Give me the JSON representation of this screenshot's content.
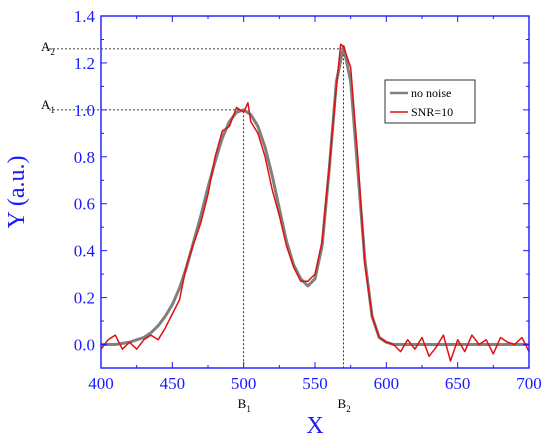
{
  "chart_data": {
    "type": "line",
    "xlabel": "X",
    "ylabel": "Y (a.u.)",
    "xlim": [
      400,
      700
    ],
    "ylim": [
      -0.1,
      1.4
    ],
    "xticks": [
      400,
      450,
      500,
      550,
      600,
      650,
      700
    ],
    "yticks": [
      0.0,
      0.2,
      0.4,
      0.6,
      0.8,
      1.0,
      1.2,
      1.4
    ],
    "xtick_labels": [
      "400",
      "450",
      "500",
      "550",
      "600",
      "650",
      "700"
    ],
    "ytick_labels": [
      "0.0",
      "0.2",
      "0.4",
      "0.6",
      "0.8",
      "1.0",
      "1.2",
      "1.4"
    ],
    "grid": false,
    "legend_position": "top-right",
    "colors": {
      "axis": "#1a1aff",
      "no_noise": "#808080",
      "snr10": "#e01010"
    },
    "series": [
      {
        "name": "no noise",
        "x": [
          400,
          405,
          410,
          415,
          420,
          425,
          430,
          435,
          440,
          445,
          450,
          455,
          460,
          465,
          470,
          475,
          480,
          485,
          490,
          495,
          500,
          505,
          510,
          515,
          520,
          525,
          530,
          535,
          540,
          545,
          550,
          555,
          560,
          565,
          570,
          575,
          580,
          585,
          590,
          595,
          600,
          605,
          610,
          615,
          620,
          625,
          630,
          635,
          640,
          645,
          650,
          655,
          660,
          665,
          670,
          675,
          680,
          685,
          690,
          695,
          700
        ],
        "y": [
          0.0,
          0.0,
          0.0,
          0.005,
          0.01,
          0.02,
          0.03,
          0.05,
          0.08,
          0.12,
          0.17,
          0.24,
          0.33,
          0.44,
          0.55,
          0.67,
          0.78,
          0.88,
          0.95,
          0.99,
          1.0,
          0.98,
          0.93,
          0.84,
          0.72,
          0.58,
          0.44,
          0.34,
          0.28,
          0.25,
          0.28,
          0.42,
          0.75,
          1.12,
          1.27,
          1.12,
          0.74,
          0.36,
          0.12,
          0.03,
          0.01,
          0.0,
          0.0,
          0.0,
          0.0,
          0.0,
          0.0,
          0.0,
          0.0,
          0.0,
          0.0,
          0.0,
          0.0,
          0.0,
          0.0,
          0.0,
          0.0,
          0.0,
          0.0,
          0.0,
          0.0
        ]
      },
      {
        "name": "SNR=10",
        "x": [
          400,
          405,
          410,
          415,
          420,
          425,
          430,
          435,
          440,
          445,
          450,
          455,
          460,
          465,
          470,
          475,
          480,
          485,
          490,
          495,
          500,
          503,
          505,
          510,
          515,
          520,
          525,
          530,
          535,
          540,
          545,
          550,
          555,
          560,
          565,
          568,
          570,
          575,
          580,
          585,
          590,
          595,
          600,
          605,
          610,
          615,
          620,
          625,
          630,
          635,
          640,
          645,
          650,
          655,
          660,
          665,
          670,
          675,
          680,
          685,
          690,
          695,
          700
        ],
        "y": [
          -0.02,
          0.02,
          0.04,
          -0.02,
          0.01,
          -0.02,
          0.02,
          0.04,
          0.02,
          0.07,
          0.13,
          0.19,
          0.34,
          0.43,
          0.52,
          0.64,
          0.8,
          0.91,
          0.93,
          1.01,
          0.99,
          1.03,
          0.95,
          0.9,
          0.8,
          0.66,
          0.55,
          0.42,
          0.33,
          0.27,
          0.27,
          0.3,
          0.44,
          0.76,
          1.1,
          1.28,
          1.27,
          1.18,
          0.8,
          0.34,
          0.12,
          0.03,
          0.01,
          0.0,
          -0.03,
          0.02,
          -0.02,
          0.03,
          -0.05,
          -0.01,
          0.04,
          -0.07,
          0.02,
          -0.03,
          0.04,
          0.0,
          0.02,
          -0.04,
          0.03,
          0.01,
          0.0,
          0.03,
          -0.03
        ]
      }
    ],
    "annotations": {
      "A1": {
        "label": "A",
        "sub": "1",
        "value": 1.0
      },
      "A2": {
        "label": "A",
        "sub": "2",
        "value": 1.26
      },
      "B1": {
        "label": "B",
        "sub": "1",
        "value": 500
      },
      "B2": {
        "label": "B",
        "sub": "2",
        "value": 570
      }
    }
  }
}
